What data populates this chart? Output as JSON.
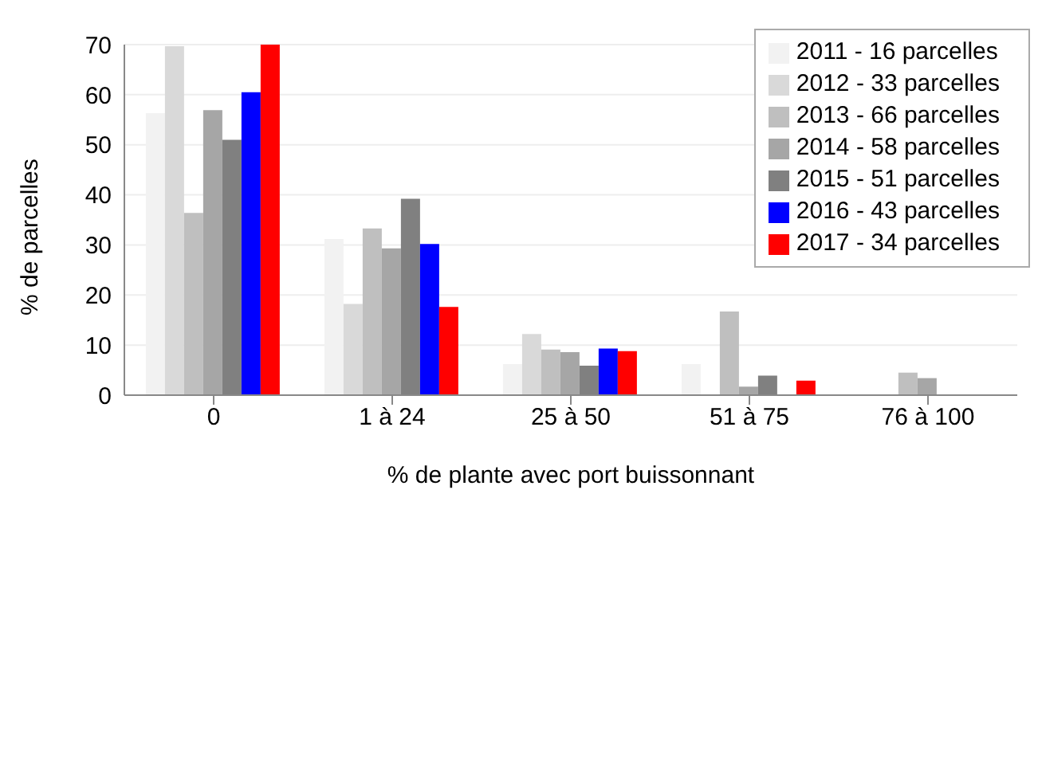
{
  "chart_data": {
    "type": "bar",
    "xlabel": "% de plante avec port buissonnant",
    "ylabel": "% de parcelles",
    "categories": [
      "0",
      "1 à 24",
      "25 à 50",
      "51 à 75",
      "76 à 100"
    ],
    "series": [
      {
        "name": "2011 - 16 parcelles",
        "color": "#f2f2f2",
        "values": [
          56.3,
          31.2,
          6.2,
          6.2,
          0
        ]
      },
      {
        "name": "2012 - 33 parcelles",
        "color": "#d9d9d9",
        "values": [
          69.7,
          18.2,
          12.2,
          0,
          0
        ]
      },
      {
        "name": "2013 - 66 parcelles",
        "color": "#bfbfbf",
        "values": [
          36.4,
          33.3,
          9.1,
          16.7,
          4.5
        ]
      },
      {
        "name": "2014 - 58 parcelles",
        "color": "#a6a6a6",
        "values": [
          56.9,
          29.3,
          8.6,
          1.7,
          3.4
        ]
      },
      {
        "name": "2015 - 51 parcelles",
        "color": "#808080",
        "values": [
          51,
          39.2,
          5.9,
          3.9,
          0
        ]
      },
      {
        "name": "2016 - 43 parcelles",
        "color": "#0000ff",
        "values": [
          60.5,
          30.2,
          9.3,
          0,
          0
        ]
      },
      {
        "name": "2017 - 34 parcelles",
        "color": "#ff0000",
        "values": [
          70,
          17.6,
          8.8,
          2.9,
          0
        ]
      }
    ],
    "ylim": [
      0,
      70
    ],
    "yticks": [
      0,
      10,
      20,
      30,
      40,
      50,
      60,
      70
    ],
    "grid": "y",
    "legend": "top right"
  }
}
